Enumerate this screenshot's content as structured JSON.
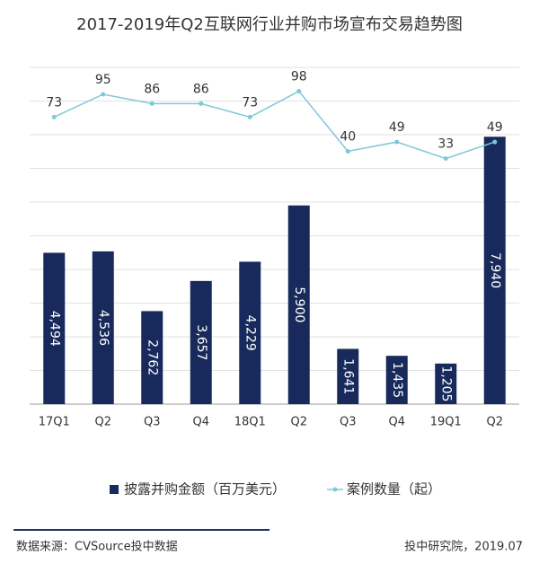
{
  "chart_data": {
    "type": "bar",
    "title": "2017-2019年Q2互联网行业并购市场宣布交易趋势图",
    "categories": [
      "17Q1",
      "Q2",
      "Q3",
      "Q4",
      "18Q1",
      "Q2",
      "Q3",
      "Q4",
      "19Q1",
      "Q2"
    ],
    "series": [
      {
        "name": "披露并购金额（百万美元）",
        "type": "bar",
        "color": "#182a5c",
        "values": [
          4494,
          4536,
          2762,
          3657,
          4229,
          5900,
          1641,
          1435,
          1205,
          7940
        ],
        "value_labels": [
          "4,494",
          "4,536",
          "2,762",
          "3,657",
          "4,229",
          "5,900",
          "1,641",
          "1,435",
          "1,205",
          "7,940"
        ]
      },
      {
        "name": "案例数量（起）",
        "type": "line",
        "axis": "y2",
        "color": "#7ec8d8",
        "values": [
          73,
          95,
          86,
          86,
          73,
          98,
          40,
          49,
          33,
          49
        ]
      }
    ],
    "ylim": [
      0,
      10000
    ],
    "yticks": [
      0,
      1000,
      2000,
      3000,
      4000,
      5000,
      6000,
      7000,
      8000,
      9000,
      10000
    ],
    "y2lim": [
      -204,
      121
    ],
    "grid": true
  },
  "footer": {
    "source": "数据来源：CVSource投中数据",
    "credit": "投中研究院，2019.07"
  }
}
